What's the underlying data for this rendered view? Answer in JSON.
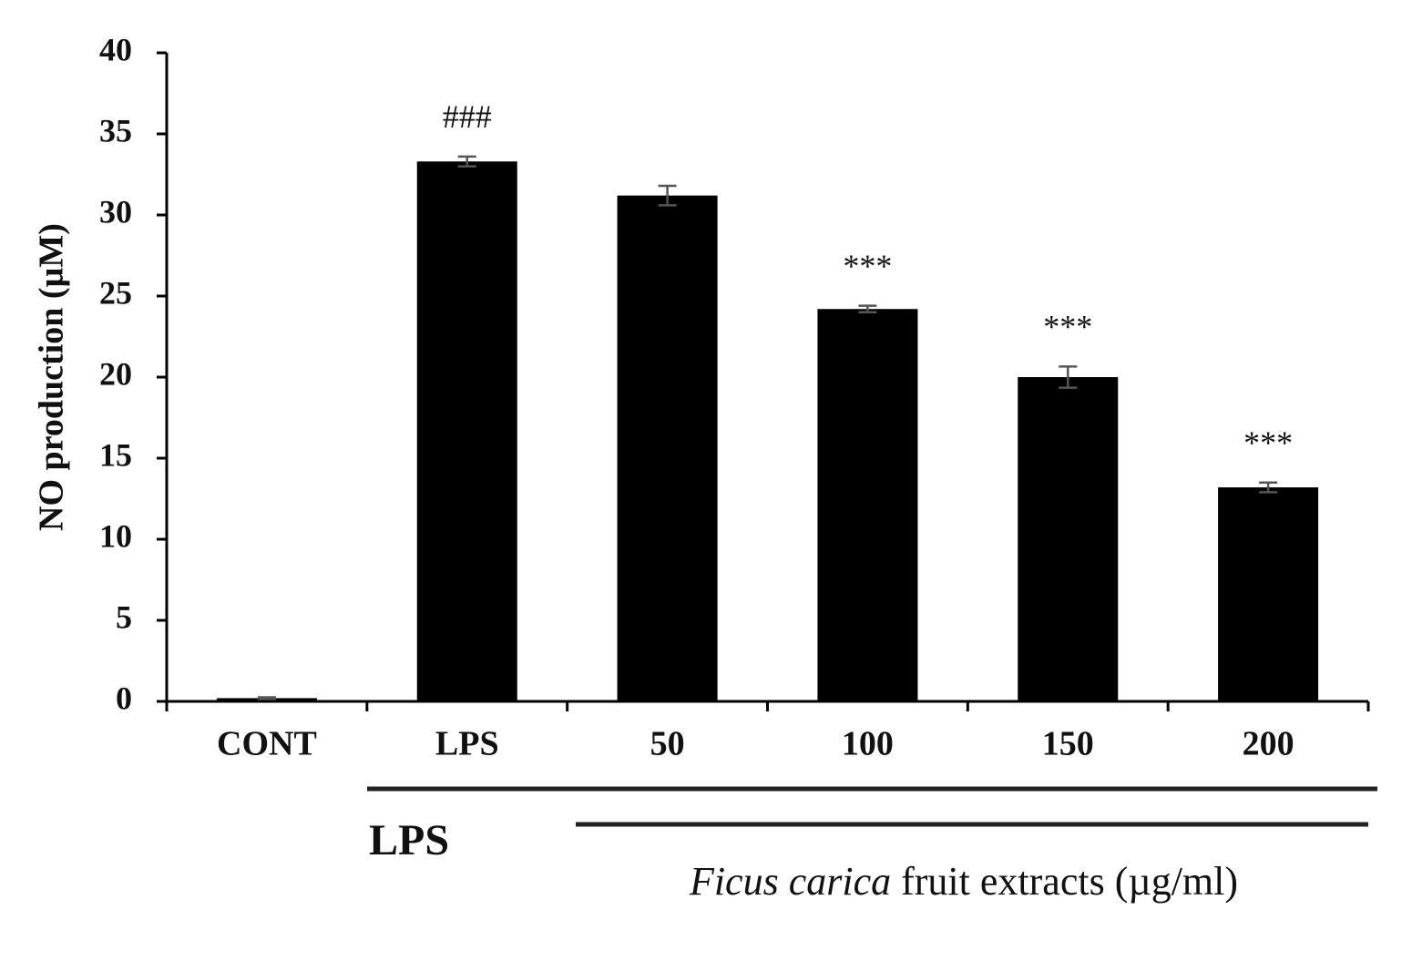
{
  "chart_data": {
    "type": "bar",
    "y_label": "NO production (µM)",
    "categories": [
      "CONT",
      "LPS",
      "50",
      "100",
      "150",
      "200"
    ],
    "values": [
      0.2,
      33.3,
      31.2,
      24.2,
      20.0,
      13.2
    ],
    "errors": [
      0.05,
      0.3,
      0.6,
      0.2,
      0.65,
      0.3
    ],
    "significance": [
      null,
      "###",
      null,
      "***",
      "***",
      "***"
    ],
    "color": "#000000",
    "ylim": [
      0,
      40
    ],
    "yticks": [
      0,
      5,
      10,
      15,
      20,
      25,
      30,
      35,
      40
    ],
    "group_labels": {
      "lps": "LPS",
      "extract_italic": "Ficus carica",
      "extract_rest": "fruit  extracts  (µg/ml)"
    }
  }
}
